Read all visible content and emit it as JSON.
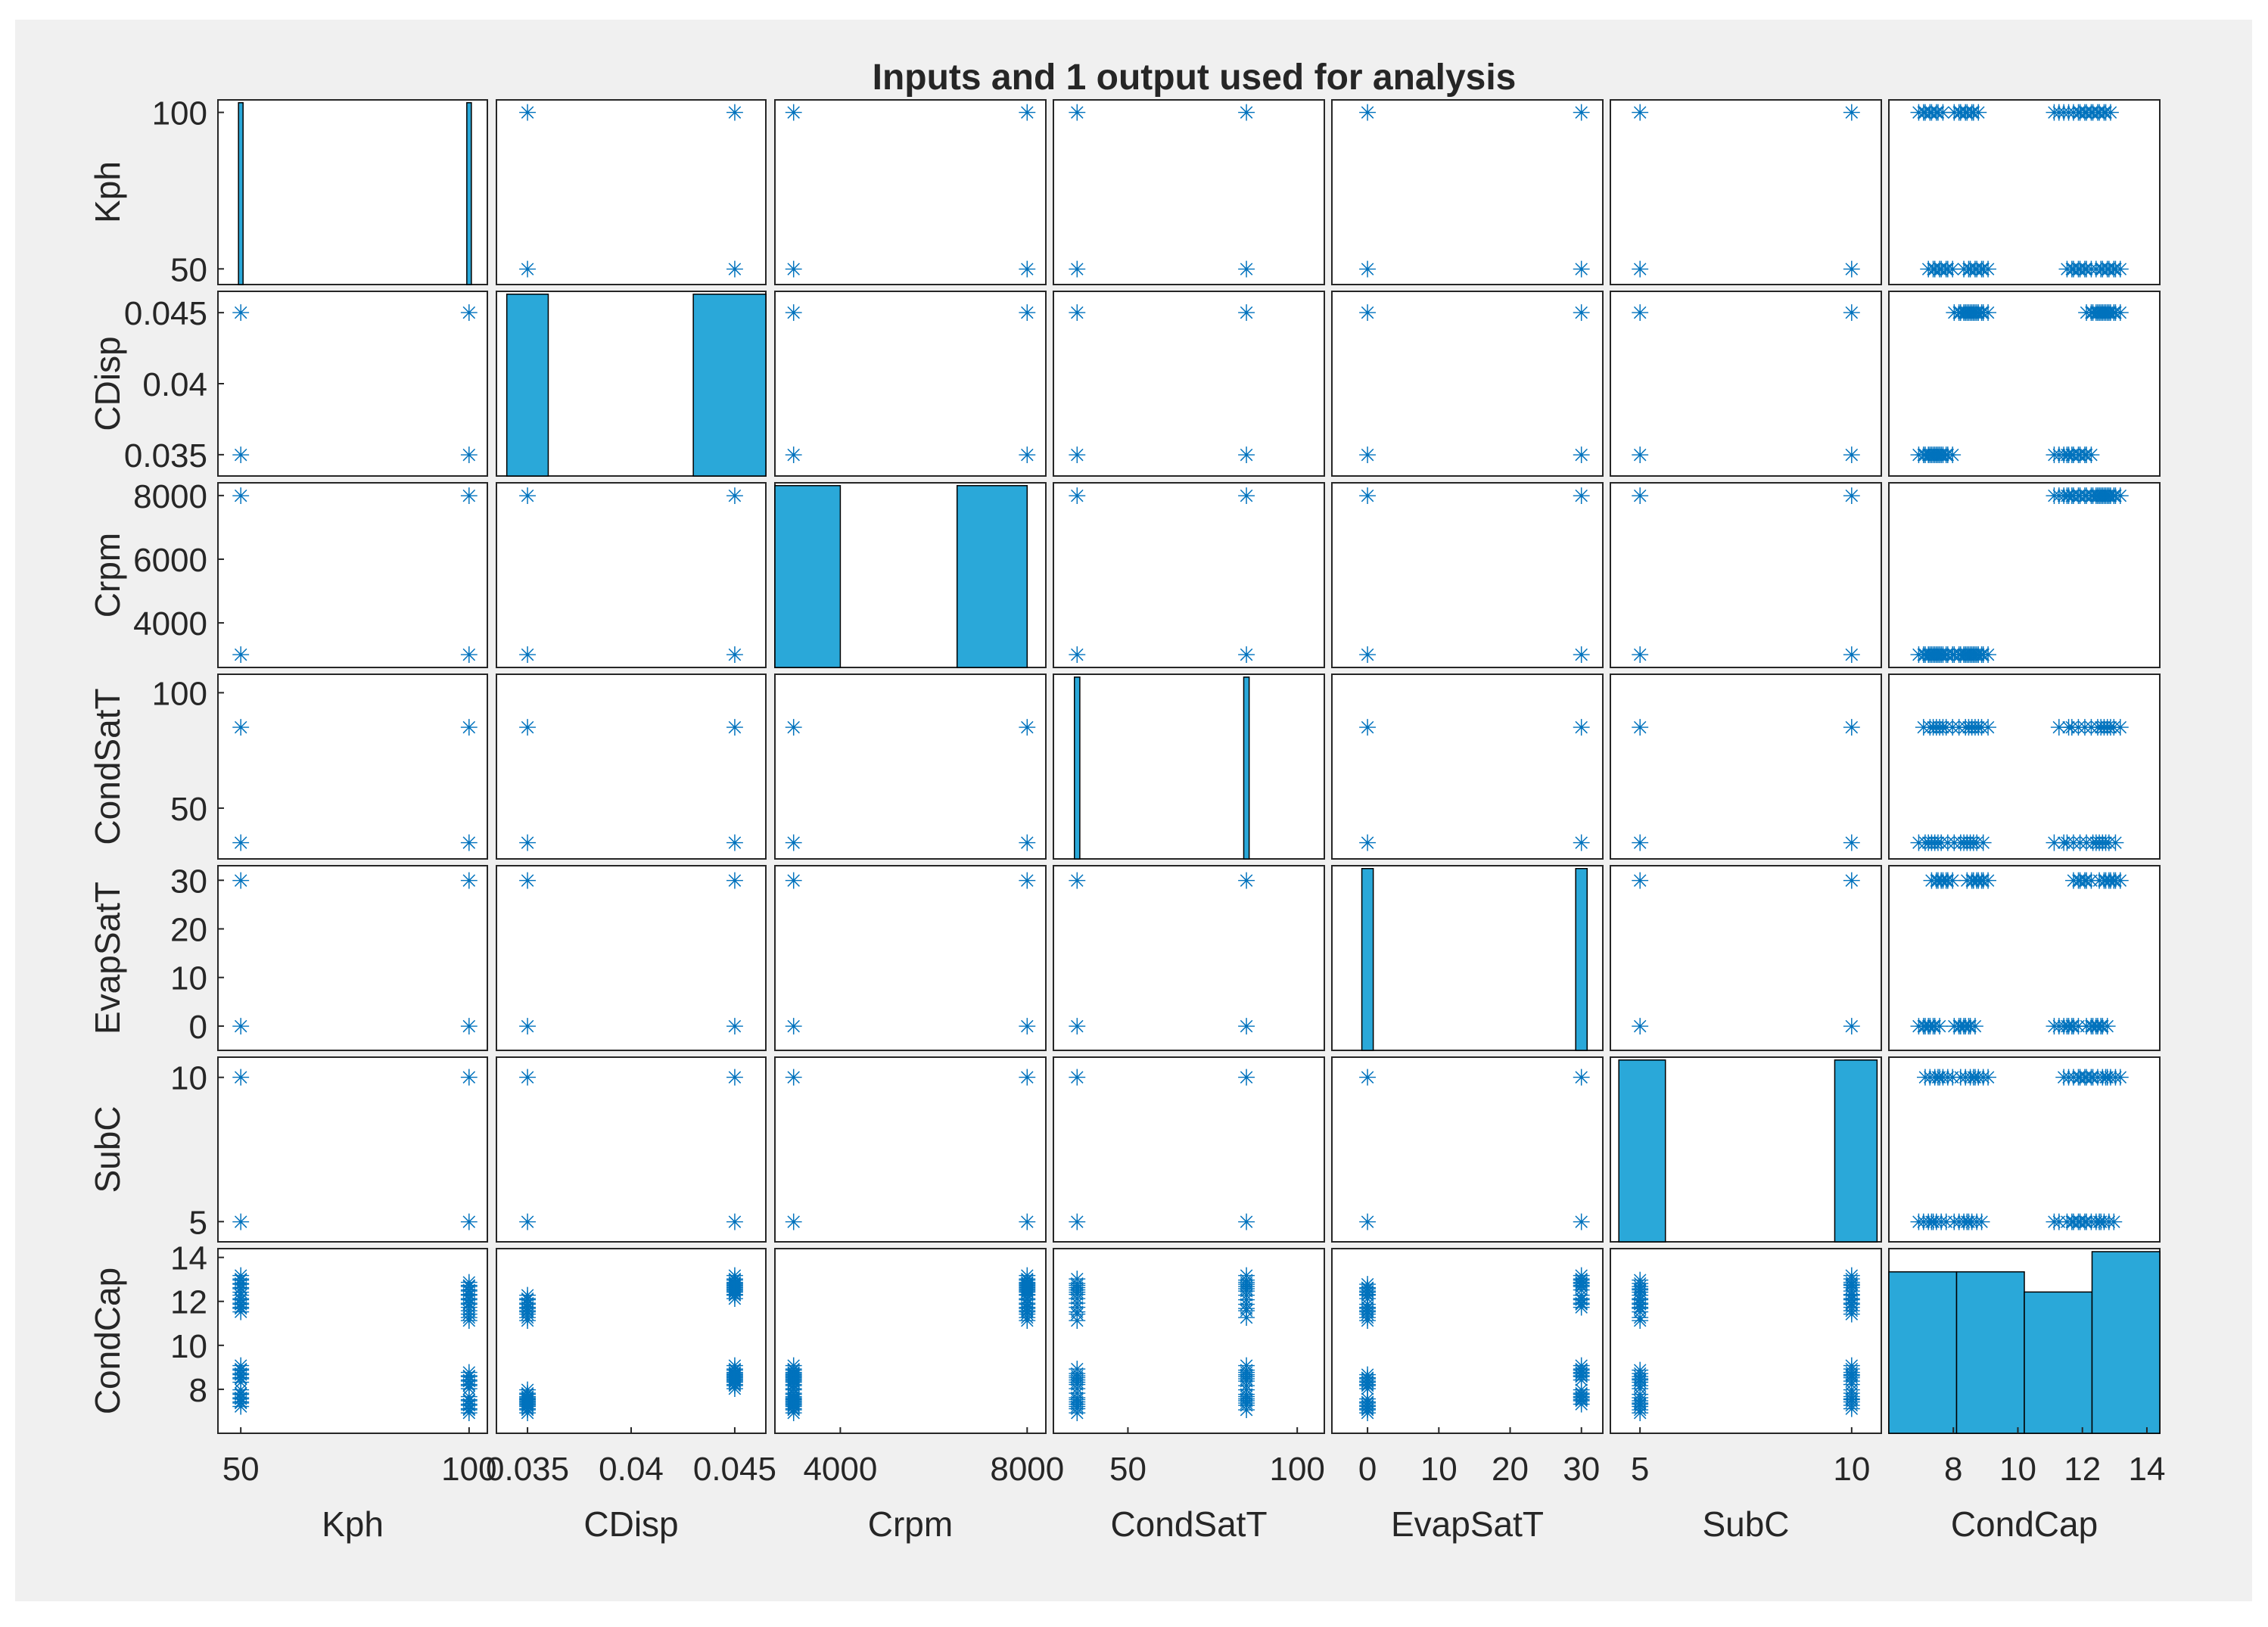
{
  "chart_data": {
    "type": "scatter-matrix",
    "title": "Inputs and 1 output used for analysis",
    "variables": [
      "Kph",
      "CDisp",
      "Crpm",
      "CondSatT",
      "EvapSatT",
      "SubC",
      "CondCap"
    ],
    "axes": [
      {
        "name": "Kph",
        "range": [
          45,
          104
        ],
        "yticks": [
          50,
          100
        ],
        "xticks": [
          50,
          100
        ],
        "xtick_labels": [
          "50",
          "100"
        ],
        "levels": [
          50,
          100
        ],
        "tight_y": [
          44,
          104
        ]
      },
      {
        "name": "CDisp",
        "range": [
          0.0335,
          0.0465
        ],
        "yticks": [
          0.035,
          0.04,
          0.045
        ],
        "xticks": [
          0.035,
          0.04,
          0.045
        ],
        "xtick_labels": [
          "0.035",
          "0.04",
          "0.045"
        ],
        "levels": [
          0.035,
          0.045
        ]
      },
      {
        "name": "Crpm",
        "range": [
          2600,
          8400
        ],
        "yticks": [
          4000,
          6000,
          8000
        ],
        "xticks": [
          4000,
          8000
        ],
        "xtick_labels": [
          "4000",
          "8000"
        ],
        "levels": [
          3000,
          8000
        ]
      },
      {
        "name": "CondSatT",
        "range": [
          28,
          108
        ],
        "yticks": [
          50,
          100
        ],
        "xticks": [
          50,
          100
        ],
        "xtick_labels": [
          "50",
          "100"
        ],
        "levels": [
          35,
          85
        ]
      },
      {
        "name": "EvapSatT",
        "range": [
          -5,
          33
        ],
        "yticks": [
          0,
          10,
          20,
          30
        ],
        "xticks": [
          0,
          10,
          20,
          30
        ],
        "xtick_labels": [
          "0",
          "10",
          "20",
          "30"
        ],
        "levels": [
          0,
          30
        ]
      },
      {
        "name": "SubC",
        "range": [
          4.3,
          10.7
        ],
        "yticks": [
          5,
          10
        ],
        "xticks": [
          5,
          10
        ],
        "xtick_labels": [
          "5",
          "10"
        ],
        "levels": [
          5,
          10
        ]
      },
      {
        "name": "CondCap",
        "range": [
          6,
          14.4
        ],
        "yticks": [
          8,
          10,
          12,
          14
        ],
        "xticks": [
          8,
          10,
          12,
          14
        ],
        "xtick_labels": [
          "8",
          "10",
          "12",
          "14"
        ]
      }
    ],
    "condcap_samples": [
      {
        "Kph": 100,
        "CDisp": 0.035,
        "Crpm": 3000,
        "CondCap": [
          7.0,
          7.2,
          7.4,
          7.6
        ]
      },
      {
        "Kph": 100,
        "CDisp": 0.045,
        "Crpm": 3000,
        "CondCap": [
          8.1,
          8.3,
          8.5,
          8.7
        ]
      },
      {
        "Kph": 100,
        "CDisp": 0.035,
        "Crpm": 8000,
        "CondCap": [
          11.2,
          11.5,
          11.8,
          12.0
        ]
      },
      {
        "Kph": 100,
        "CDisp": 0.045,
        "Crpm": 8000,
        "CondCap": [
          12.2,
          12.4,
          12.6,
          12.8
        ]
      },
      {
        "Kph": 50,
        "CDisp": 0.035,
        "Crpm": 3000,
        "CondCap": [
          7.3,
          7.5,
          7.7,
          7.9
        ]
      },
      {
        "Kph": 50,
        "CDisp": 0.045,
        "Crpm": 3000,
        "CondCap": [
          8.4,
          8.6,
          8.8,
          9.0
        ]
      },
      {
        "Kph": 50,
        "CDisp": 0.035,
        "Crpm": 8000,
        "CondCap": [
          11.6,
          11.8,
          12.0,
          12.2
        ]
      },
      {
        "Kph": 50,
        "CDisp": 0.045,
        "Crpm": 8000,
        "CondCap": [
          12.5,
          12.7,
          12.9,
          13.1
        ]
      }
    ],
    "histograms": {
      "Kph": {
        "edges": [
          49.5,
          50.5,
          99.5,
          100.5
        ],
        "counts": [
          32,
          0,
          32
        ]
      },
      "CDisp": {
        "edges": [
          0.034,
          0.036,
          0.043,
          0.0465
        ],
        "counts": [
          32,
          0,
          32
        ]
      },
      "Crpm": {
        "edges": [
          2600,
          4000,
          6500,
          8000
        ],
        "counts": [
          32,
          0,
          32
        ]
      },
      "CondSatT": {
        "edges": [
          34.2,
          35.8,
          84.2,
          85.8
        ],
        "counts": [
          32,
          0,
          32
        ]
      },
      "EvapSatT": {
        "edges": [
          -0.8,
          0.8,
          29.2,
          30.8
        ],
        "counts": [
          32,
          0,
          32
        ]
      },
      "SubC": {
        "edges": [
          4.5,
          5.6,
          9.6,
          10.6
        ],
        "counts": [
          32,
          0,
          32
        ]
      },
      "CondCap": {
        "edges": [
          6,
          8,
          10,
          12,
          14
        ],
        "counts": [
          16,
          16,
          14,
          18
        ]
      }
    },
    "histogram_ylim": [
      0,
      18.3
    ],
    "colors": {
      "marker": "#0072bd",
      "bar": "#2aa8d9",
      "bar_edge": "#000000",
      "axes": "#262626",
      "background": "#f0f0f0"
    }
  }
}
